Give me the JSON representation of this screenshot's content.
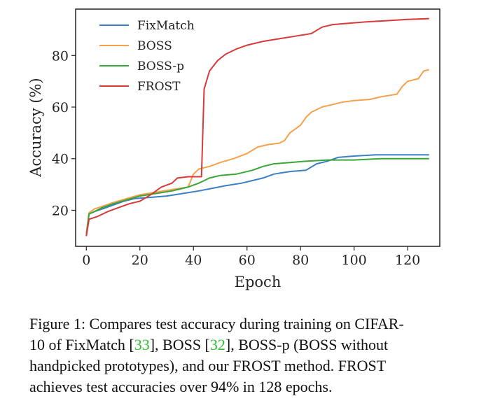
{
  "chart_data": {
    "type": "line",
    "xlabel": "Epoch",
    "ylabel": "Accuracy (%)",
    "xlim": [
      -4,
      132
    ],
    "ylim": [
      6,
      98
    ],
    "xticks": [
      0,
      20,
      40,
      60,
      80,
      100,
      120
    ],
    "yticks": [
      20,
      40,
      60,
      80
    ],
    "legend_position": "top-left",
    "grid": false,
    "series": [
      {
        "name": "FixMatch",
        "color": "#3b7fc4",
        "points": [
          [
            0,
            11
          ],
          [
            1,
            18.5
          ],
          [
            3,
            19.5
          ],
          [
            6,
            20.5
          ],
          [
            10,
            22
          ],
          [
            14,
            23.5
          ],
          [
            18,
            24.5
          ],
          [
            24,
            25
          ],
          [
            30,
            25.5
          ],
          [
            36,
            26.5
          ],
          [
            42,
            27.5
          ],
          [
            47,
            28.5
          ],
          [
            52,
            29.5
          ],
          [
            58,
            30.5
          ],
          [
            62,
            31.5
          ],
          [
            66,
            32.5
          ],
          [
            70,
            34
          ],
          [
            76,
            35
          ],
          [
            82,
            35.5
          ],
          [
            86,
            38
          ],
          [
            90,
            39
          ],
          [
            94,
            40.5
          ],
          [
            100,
            41
          ],
          [
            108,
            41.5
          ],
          [
            128,
            41.5
          ]
        ]
      },
      {
        "name": "BOSS",
        "color": "#f5a04a",
        "points": [
          [
            0,
            10.5
          ],
          [
            1,
            19
          ],
          [
            3,
            20.5
          ],
          [
            6,
            21.5
          ],
          [
            10,
            23
          ],
          [
            15,
            24.5
          ],
          [
            20,
            26
          ],
          [
            26,
            27
          ],
          [
            32,
            28
          ],
          [
            38,
            29
          ],
          [
            40,
            34
          ],
          [
            42,
            36
          ],
          [
            46,
            37
          ],
          [
            50,
            38.5
          ],
          [
            55,
            40
          ],
          [
            60,
            42
          ],
          [
            64,
            44.5
          ],
          [
            68,
            45.5
          ],
          [
            72,
            46
          ],
          [
            74,
            47
          ],
          [
            76,
            50
          ],
          [
            80,
            53
          ],
          [
            82,
            56
          ],
          [
            84,
            58
          ],
          [
            88,
            60
          ],
          [
            92,
            61
          ],
          [
            96,
            62
          ],
          [
            100,
            62.5
          ],
          [
            106,
            63
          ],
          [
            110,
            64
          ],
          [
            116,
            65
          ],
          [
            118,
            68
          ],
          [
            120,
            70
          ],
          [
            124,
            71
          ],
          [
            126,
            74
          ],
          [
            128,
            74.5
          ]
        ]
      },
      {
        "name": "BOSS-p",
        "color": "#3aa53a",
        "points": [
          [
            0,
            10
          ],
          [
            1,
            18.5
          ],
          [
            3,
            19.5
          ],
          [
            6,
            21
          ],
          [
            10,
            22.5
          ],
          [
            15,
            24
          ],
          [
            20,
            25.5
          ],
          [
            26,
            26.5
          ],
          [
            32,
            27.5
          ],
          [
            38,
            29
          ],
          [
            42,
            30.5
          ],
          [
            46,
            32.5
          ],
          [
            50,
            33.5
          ],
          [
            56,
            34
          ],
          [
            62,
            35.5
          ],
          [
            66,
            37
          ],
          [
            70,
            38
          ],
          [
            76,
            38.5
          ],
          [
            82,
            39
          ],
          [
            90,
            39.5
          ],
          [
            100,
            39.5
          ],
          [
            110,
            40
          ],
          [
            128,
            40
          ]
        ]
      },
      {
        "name": "FROST",
        "color": "#d63a3a",
        "points": [
          [
            0,
            10
          ],
          [
            1,
            16.5
          ],
          [
            4,
            17.5
          ],
          [
            8,
            19.5
          ],
          [
            12,
            21
          ],
          [
            16,
            22.5
          ],
          [
            20,
            23.5
          ],
          [
            24,
            26
          ],
          [
            28,
            29
          ],
          [
            32,
            30.5
          ],
          [
            34,
            32.5
          ],
          [
            38,
            33
          ],
          [
            42,
            33
          ],
          [
            43,
            33
          ],
          [
            44,
            67
          ],
          [
            46,
            74
          ],
          [
            49,
            78
          ],
          [
            52,
            80.5
          ],
          [
            56,
            82.5
          ],
          [
            60,
            84
          ],
          [
            66,
            85.5
          ],
          [
            72,
            86.5
          ],
          [
            78,
            87.5
          ],
          [
            84,
            88.5
          ],
          [
            88,
            91
          ],
          [
            92,
            92
          ],
          [
            98,
            92.5
          ],
          [
            104,
            93
          ],
          [
            112,
            93.5
          ],
          [
            120,
            94
          ],
          [
            128,
            94.3
          ]
        ]
      }
    ]
  },
  "caption": {
    "line1_a": "Figure 1: Compares test accuracy during training on CIFAR-",
    "line2_a": "10 of FixMatch [",
    "ref_fixmatch": "33",
    "line2_b": "], BOSS [",
    "ref_boss": "32",
    "line2_c": "], BOSS-p (BOSS without",
    "line3": "handpicked prototypes), and our FROST method. FROST",
    "line4": "achieves test accuracies over 94% in 128 epochs."
  }
}
